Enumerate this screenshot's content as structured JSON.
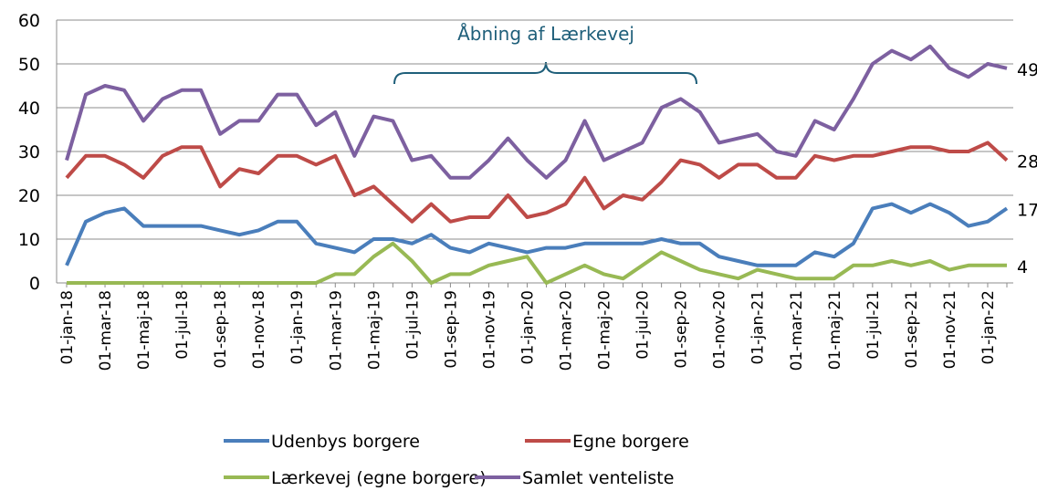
{
  "chart_data": {
    "type": "line",
    "annotation": "Åbning af Lærkevej",
    "categories": [
      "01-jan-18",
      null,
      "01-mar-18",
      null,
      "01-maj-18",
      null,
      "01-jul-18",
      null,
      "01-sep-18",
      null,
      "01-nov-18",
      null,
      "01-jan-19",
      null,
      "01-mar-19",
      null,
      "01-maj-19",
      null,
      "01-jul-19",
      null,
      "01-sep-19",
      null,
      "01-nov-19",
      null,
      "01-jan-20",
      null,
      "01-mar-20",
      null,
      "01-maj-20",
      null,
      "01-jul-20",
      null,
      "01-sep-20",
      null,
      "01-nov-20",
      null,
      "01-jan-21",
      null,
      "01-mar-21",
      null,
      "01-maj-21",
      null,
      "01-jul-21",
      null,
      "01-sep-21",
      null,
      "01-nov-21",
      null,
      "01-jan-22",
      null
    ],
    "series": [
      {
        "name": "Udenbys borgere",
        "color": "#4a7ebb",
        "values": [
          4,
          14,
          16,
          17,
          13,
          13,
          13,
          13,
          12,
          11,
          12,
          14,
          14,
          9,
          8,
          7,
          10,
          10,
          9,
          11,
          8,
          7,
          9,
          8,
          7,
          8,
          8,
          9,
          9,
          9,
          9,
          10,
          9,
          9,
          6,
          5,
          4,
          4,
          4,
          7,
          6,
          9,
          17,
          18,
          16,
          18,
          16,
          13,
          14,
          17
        ]
      },
      {
        "name": "Egne borgere",
        "color": "#be4b48",
        "values": [
          24,
          29,
          29,
          27,
          24,
          29,
          31,
          31,
          22,
          26,
          25,
          29,
          29,
          27,
          29,
          20,
          22,
          18,
          14,
          18,
          14,
          15,
          15,
          20,
          15,
          16,
          18,
          24,
          17,
          20,
          19,
          23,
          28,
          27,
          24,
          27,
          27,
          24,
          24,
          29,
          28,
          29,
          29,
          30,
          31,
          31,
          30,
          30,
          32,
          28
        ]
      },
      {
        "name": "Lærkevej (egne borgere)",
        "color": "#98b954",
        "values": [
          0,
          0,
          0,
          0,
          0,
          0,
          0,
          0,
          0,
          0,
          0,
          0,
          0,
          0,
          2,
          2,
          6,
          9,
          5,
          0,
          2,
          2,
          4,
          5,
          6,
          0,
          2,
          4,
          2,
          1,
          4,
          7,
          5,
          3,
          2,
          1,
          3,
          2,
          1,
          1,
          1,
          4,
          4,
          5,
          4,
          5,
          3,
          4,
          4,
          4
        ]
      },
      {
        "name": "Samlet venteliste",
        "color": "#7d60a0",
        "values": [
          28,
          43,
          45,
          44,
          37,
          42,
          44,
          44,
          34,
          37,
          37,
          43,
          43,
          36,
          39,
          29,
          38,
          37,
          28,
          29,
          24,
          24,
          28,
          33,
          28,
          24,
          28,
          37,
          28,
          30,
          32,
          40,
          42,
          39,
          32,
          33,
          34,
          30,
          29,
          37,
          35,
          42,
          50,
          53,
          51,
          54,
          49,
          47,
          50,
          49
        ]
      }
    ],
    "ylim": [
      0,
      60
    ],
    "yticks": [
      0,
      10,
      20,
      30,
      40,
      50,
      60
    ],
    "grid": true
  }
}
